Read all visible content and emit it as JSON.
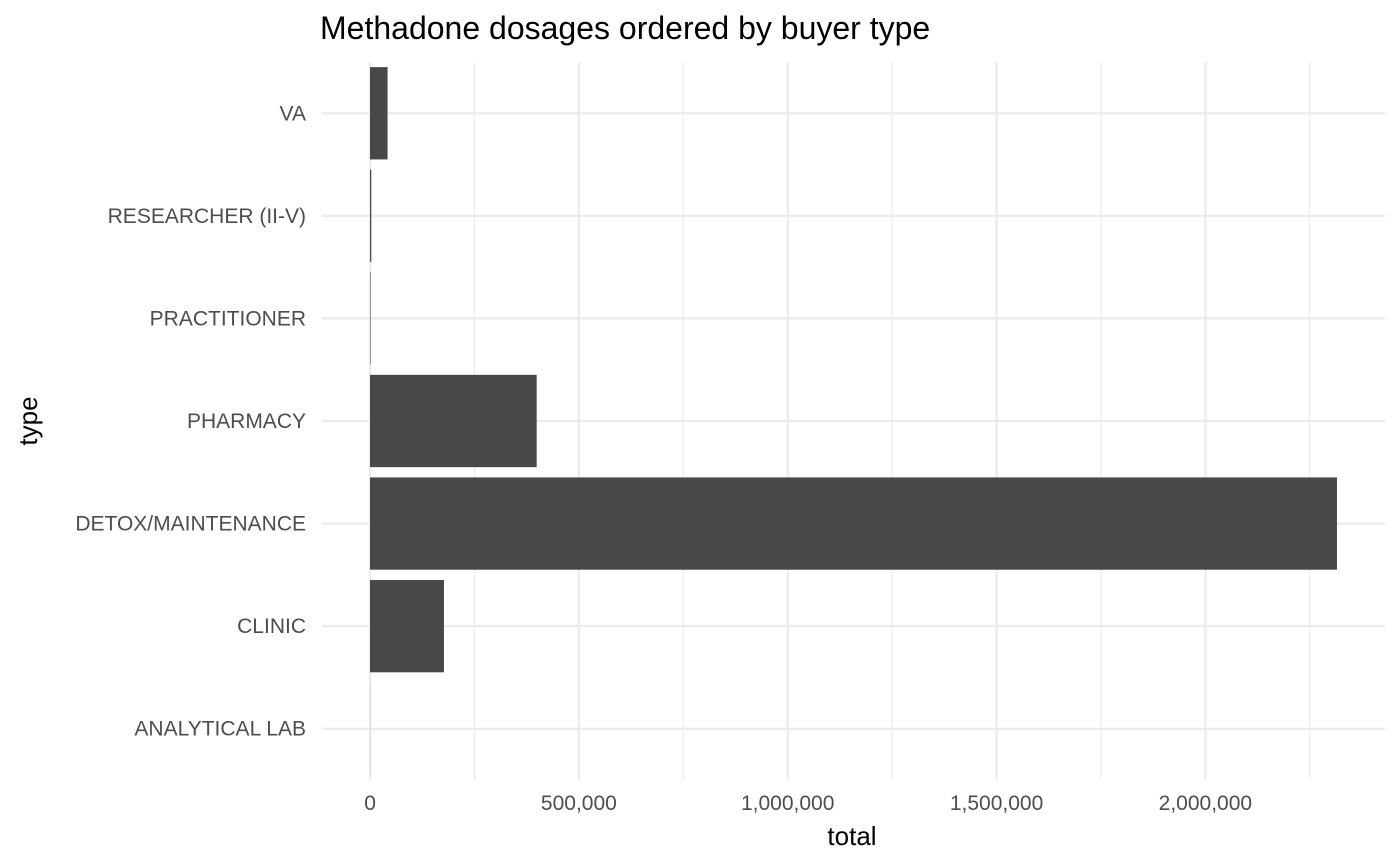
{
  "chart_data": {
    "type": "bar",
    "orientation": "horizontal",
    "title": "Methadone dosages ordered by buyer type",
    "xlabel": "total",
    "ylabel": "type",
    "categories": [
      "ANALYTICAL LAB",
      "CLINIC",
      "DETOX/MAINTENANCE",
      "PHARMACY",
      "PRACTITIONER",
      "RESEARCHER (II-V)",
      "VA"
    ],
    "values": [
      200,
      177000,
      2315000,
      399000,
      1200,
      3000,
      42000
    ],
    "xlim": [
      -115000,
      2430000
    ],
    "x_ticks": [
      0,
      500000,
      1000000,
      1500000,
      2000000
    ],
    "x_tick_labels": [
      "0",
      "500,000",
      "1,000,000",
      "1,500,000",
      "2,000,000"
    ],
    "bar_color": "#484848",
    "grid": true,
    "legend": "none"
  }
}
